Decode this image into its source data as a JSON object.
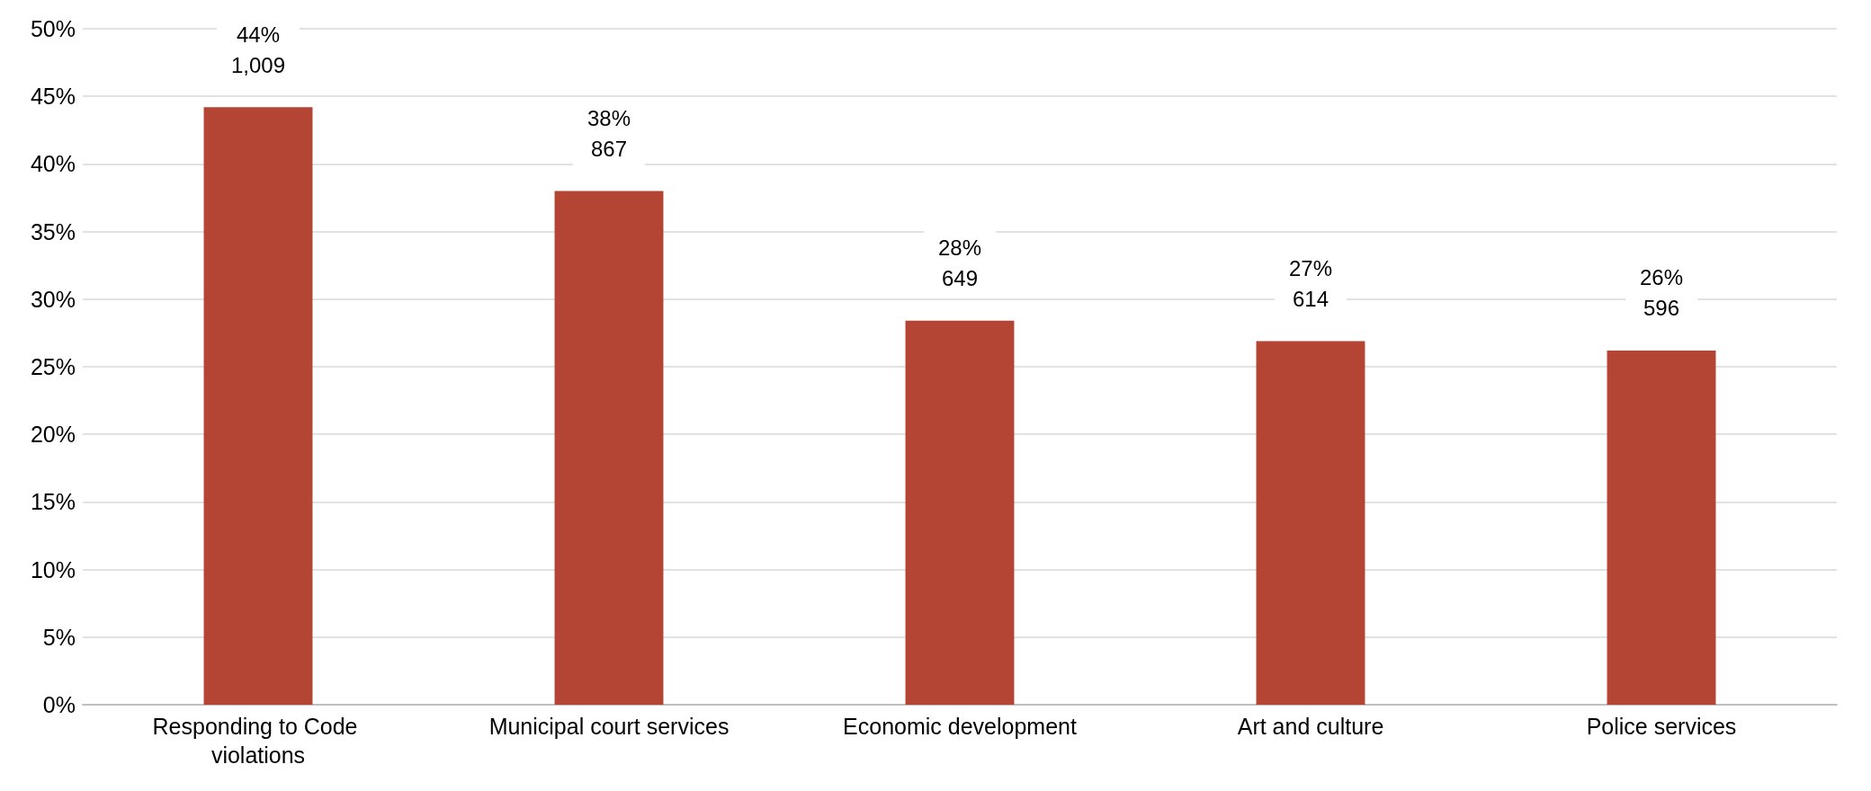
{
  "chart_data": {
    "type": "bar",
    "categories": [
      "Responding to Code violations",
      "Municipal court services",
      "Economic development",
      "Art and culture",
      "Police services"
    ],
    "values": [
      44.2,
      38.0,
      28.4,
      26.9,
      26.2
    ],
    "value_labels": [
      "44%\n1,009",
      "38%\n867",
      "28%\n649",
      "27%\n614",
      "26%\n596"
    ],
    "color": "#b44434",
    "ylim": [
      0,
      50
    ],
    "yticks": [
      {
        "value": 0,
        "label": "0%"
      },
      {
        "value": 5,
        "label": "5%"
      },
      {
        "value": 10,
        "label": "10%"
      },
      {
        "value": 15,
        "label": "15%"
      },
      {
        "value": 20,
        "label": "20%"
      },
      {
        "value": 25,
        "label": "25%"
      },
      {
        "value": 30,
        "label": "30%"
      },
      {
        "value": 35,
        "label": "35%"
      },
      {
        "value": 40,
        "label": "40%"
      },
      {
        "value": 45,
        "label": "45%"
      },
      {
        "value": 50,
        "label": "50%"
      }
    ],
    "grid": "y"
  }
}
